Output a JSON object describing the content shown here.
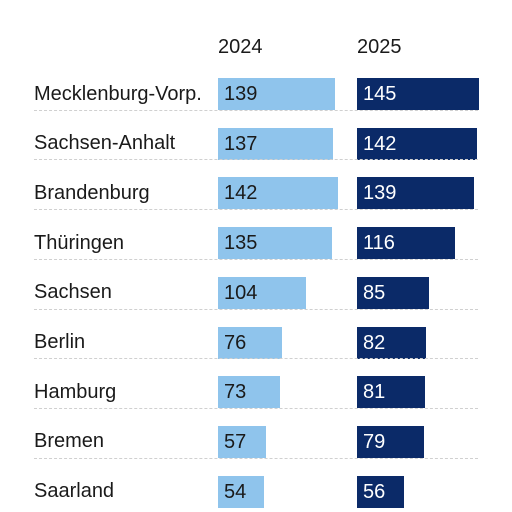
{
  "chart_data": {
    "type": "bar",
    "orientation": "horizontal",
    "categories": [
      "Mecklenburg-Vorp.",
      "Sachsen-Anhalt",
      "Brandenburg",
      "Thüringen",
      "Sachsen",
      "Berlin",
      "Hamburg",
      "Bremen",
      "Saarland"
    ],
    "series": [
      {
        "name": "2024",
        "color": "#8fc4ec",
        "text_color": "#1a1a1a",
        "values": [
          139,
          137,
          142,
          135,
          104,
          76,
          73,
          57,
          54
        ]
      },
      {
        "name": "2025",
        "color": "#0b2a68",
        "text_color": "#ffffff",
        "values": [
          145,
          142,
          139,
          116,
          85,
          82,
          81,
          79,
          56
        ]
      }
    ]
  }
}
